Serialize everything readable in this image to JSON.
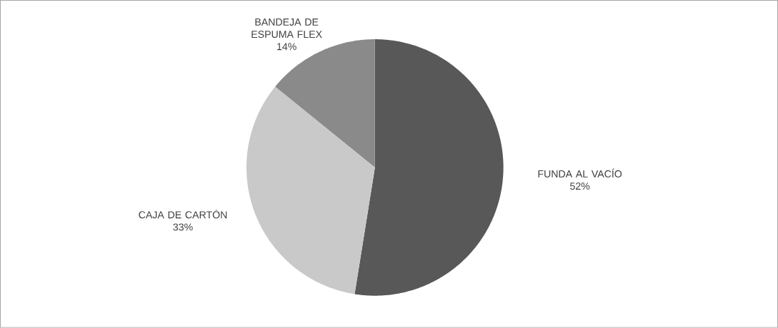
{
  "chart_data": {
    "type": "pie",
    "categories": [
      "FUNDA AL VACÍO",
      "CAJA DE CARTÓN",
      "BANDEJA DE ESPUMA FLEX"
    ],
    "values": [
      52,
      33,
      14
    ],
    "colors": [
      "#585858",
      "#c9c9c9",
      "#8a8a8a"
    ],
    "value_labels": [
      "52%",
      "33%",
      "14%"
    ]
  }
}
